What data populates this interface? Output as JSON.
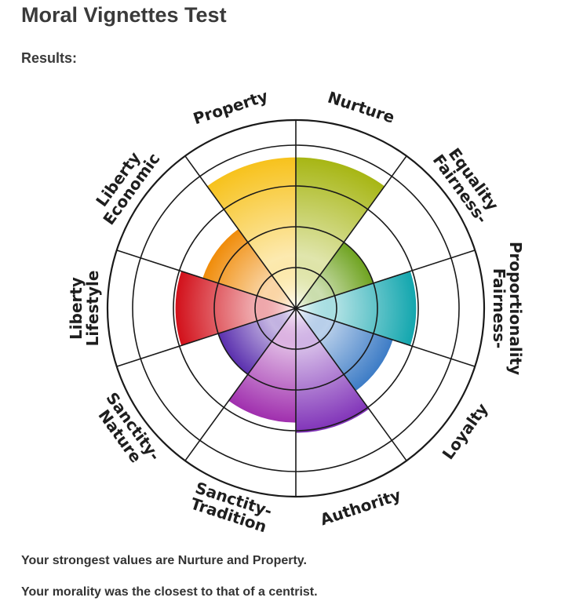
{
  "page": {
    "title": "Moral Vignettes Test",
    "results_label": "Results:",
    "summary_strongest": "Your strongest values are Nurture and Property.",
    "summary_closest": "Your morality was the closest to that of a centrist."
  },
  "chart_data": {
    "type": "polar-area",
    "max_value": 4,
    "rings": 4,
    "categories": [
      {
        "name": "Nurture",
        "label_lines": [
          "Nurture"
        ],
        "value": 3.7,
        "color": "#a7b614"
      },
      {
        "name": "Fairness-Equality",
        "label_lines": [
          "Fairness-",
          "Equality"
        ],
        "value": 2.0,
        "color": "#6fa320"
      },
      {
        "name": "Fairness-Proportionality",
        "label_lines": [
          "Fairness-",
          "Proportionality"
        ],
        "value": 2.95,
        "color": "#12a6ae"
      },
      {
        "name": "Loyalty",
        "label_lines": [
          "Loyalty"
        ],
        "value": 2.5,
        "color": "#3d7cc6"
      },
      {
        "name": "Authority",
        "label_lines": [
          "Authority"
        ],
        "value": 3.05,
        "color": "#8032b8"
      },
      {
        "name": "Sanctity-Tradition",
        "label_lines": [
          "Sanctity-",
          "Tradition"
        ],
        "value": 2.8,
        "color": "#a02fae"
      },
      {
        "name": "Sanctity-Nature",
        "label_lines": [
          "Sanctity-",
          "Nature"
        ],
        "value": 2.0,
        "color": "#5a2fae"
      },
      {
        "name": "Lifestyle Liberty",
        "label_lines": [
          "Lifestyle",
          "Liberty"
        ],
        "value": 2.95,
        "color": "#d2101a"
      },
      {
        "name": "Economic Liberty",
        "label_lines": [
          "Economic",
          "Liberty"
        ],
        "value": 2.4,
        "color": "#f08c0a"
      },
      {
        "name": "Property",
        "label_lines": [
          "Property"
        ],
        "value": 3.7,
        "color": "#f7c21c"
      }
    ]
  }
}
